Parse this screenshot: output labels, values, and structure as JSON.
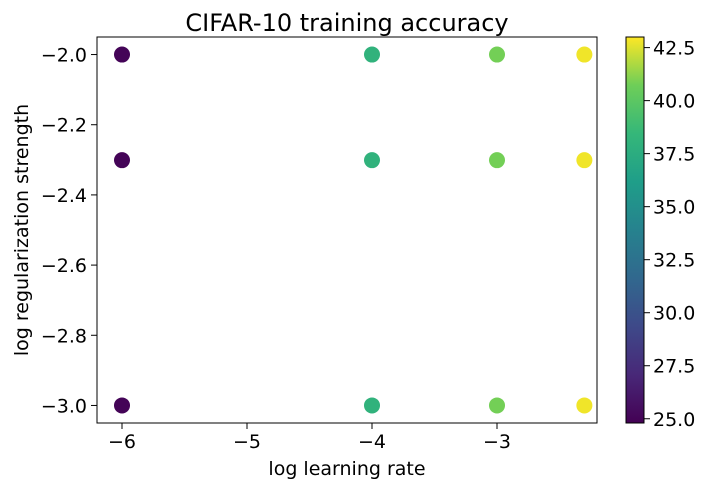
{
  "chart_data": {
    "type": "scatter",
    "title": "CIFAR-10 training accuracy",
    "xlabel": "log learning rate",
    "ylabel": "log regularization strength",
    "xlim": [
      -6.2,
      -2.2
    ],
    "ylim": [
      -3.05,
      -1.95
    ],
    "xticks": [
      -6,
      -5,
      -4,
      -3
    ],
    "xtick_labels": [
      "−6",
      "−5",
      "−4",
      "−3"
    ],
    "yticks": [
      -2.0,
      -2.2,
      -2.4,
      -2.6,
      -2.8,
      -3.0
    ],
    "ytick_labels": [
      "−2.0",
      "−2.2",
      "−2.4",
      "−2.6",
      "−2.8",
      "−3.0"
    ],
    "grid": false,
    "colormap": "viridis",
    "colorbar": {
      "range": [
        24.8,
        43.0
      ],
      "ticks": [
        25.0,
        27.5,
        30.0,
        32.5,
        35.0,
        37.5,
        40.0,
        42.5
      ],
      "tick_labels": [
        "25.0",
        "27.5",
        "30.0",
        "32.5",
        "35.0",
        "37.5",
        "40.0",
        "42.5"
      ]
    },
    "points": [
      {
        "x": -6.0,
        "y": -2.0,
        "value": 25.0
      },
      {
        "x": -6.0,
        "y": -2.301,
        "value": 25.0
      },
      {
        "x": -6.0,
        "y": -3.0,
        "value": 25.0
      },
      {
        "x": -4.0,
        "y": -2.0,
        "value": 38.0
      },
      {
        "x": -4.0,
        "y": -2.301,
        "value": 38.0
      },
      {
        "x": -4.0,
        "y": -3.0,
        "value": 38.0
      },
      {
        "x": -3.0,
        "y": -2.0,
        "value": 40.8
      },
      {
        "x": -3.0,
        "y": -2.301,
        "value": 40.8
      },
      {
        "x": -3.0,
        "y": -3.0,
        "value": 40.8
      },
      {
        "x": -2.301,
        "y": -2.0,
        "value": 42.8
      },
      {
        "x": -2.301,
        "y": -2.301,
        "value": 42.8
      },
      {
        "x": -2.301,
        "y": -3.0,
        "value": 42.8
      }
    ]
  }
}
